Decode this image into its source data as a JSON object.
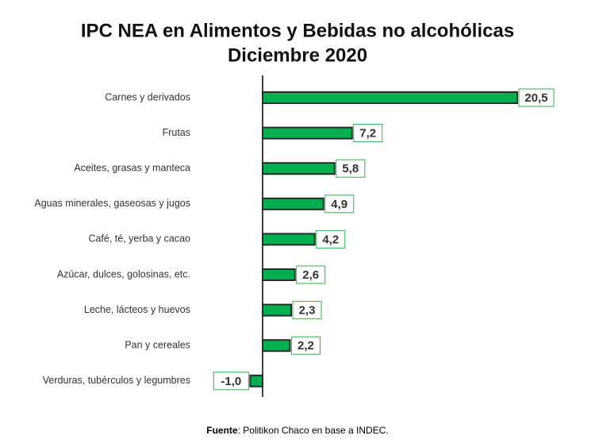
{
  "chart_data": {
    "type": "bar",
    "orientation": "horizontal",
    "title": "IPC NEA en Alimentos y Bebidas no alcohólicas",
    "subtitle": "Diciembre 2020",
    "categories": [
      "Carnes y derivados",
      "Frutas",
      "Aceites, grasas y manteca",
      "Aguas minerales, gaseosas y jugos",
      "Café, té, yerba y cacao",
      "Azúcar, dulces, golosinas, etc.",
      "Leche, lácteos y huevos",
      "Pan y cereales",
      "Verduras, tubérculos y legumbres"
    ],
    "values": [
      20.5,
      7.2,
      5.8,
      4.9,
      4.2,
      2.6,
      2.3,
      2.2,
      -1.0
    ],
    "value_labels": [
      "20,5",
      "7,2",
      "5,8",
      "4,9",
      "4,2",
      "2,6",
      "2,3",
      "2,2",
      "-1,0"
    ],
    "color": "#00b050",
    "source": {
      "label": "Fuente",
      "text": ": Politikon Chaco en base a INDEC."
    }
  }
}
